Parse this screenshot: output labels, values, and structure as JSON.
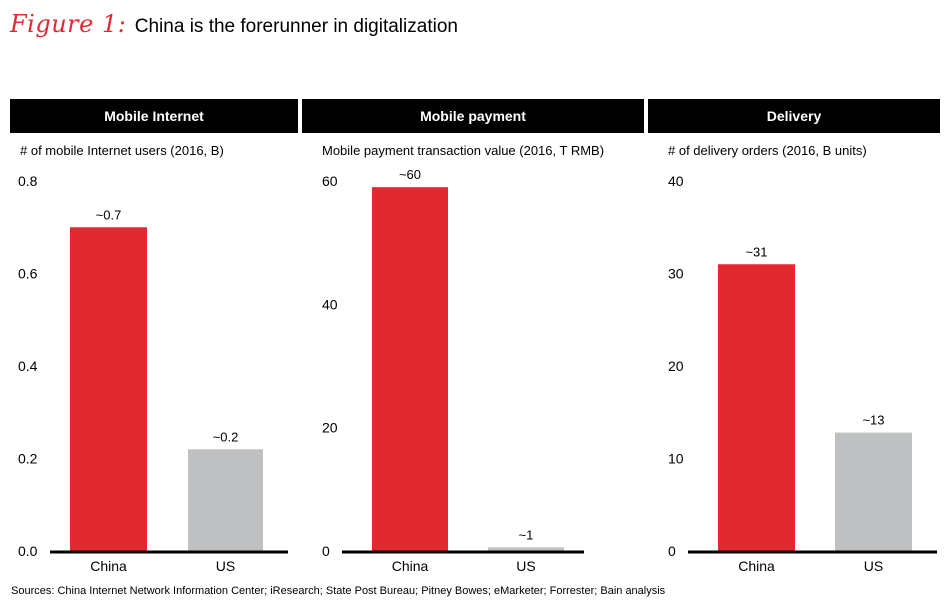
{
  "figure": {
    "label": "Figure 1:",
    "title": "China is the forerunner in digitalization",
    "sources": "Sources: China Internet Network Information Center; iResearch; State Post Bureau; Pitney Bowes; eMarketer; Forrester; Bain analysis"
  },
  "colors": {
    "china": "#e2292f",
    "us": "#bfc0c2",
    "header_bg": "#000000",
    "accent": "#e2292f"
  },
  "chart_data": [
    {
      "type": "bar",
      "title": "Mobile Internet",
      "ylabel": "# of mobile Internet users (2016, B)",
      "categories": [
        "China",
        "US"
      ],
      "values": [
        0.7,
        0.22
      ],
      "data_labels": [
        "~0.7",
        "~0.2"
      ],
      "ylim": [
        0,
        0.8
      ],
      "yticks": [
        0.0,
        0.2,
        0.4,
        0.6,
        0.8
      ],
      "ytick_labels": [
        "0.0",
        "0.2",
        "0.4",
        "0.6",
        "0.8"
      ],
      "grid": false
    },
    {
      "type": "bar",
      "title": "Mobile payment",
      "ylabel": "Mobile payment transaction value (2016, T RMB)",
      "categories": [
        "China",
        "US"
      ],
      "values": [
        59,
        0.6
      ],
      "data_labels": [
        "~60",
        "~1"
      ],
      "ylim": [
        0,
        60
      ],
      "yticks": [
        0,
        20,
        40,
        60
      ],
      "ytick_labels": [
        "0",
        "20",
        "40",
        "60"
      ],
      "grid": false
    },
    {
      "type": "bar",
      "title": "Delivery",
      "ylabel": "# of delivery orders (2016, B units)",
      "categories": [
        "China",
        "US"
      ],
      "values": [
        31,
        12.8
      ],
      "data_labels": [
        "~31",
        "~13"
      ],
      "ylim": [
        0,
        40
      ],
      "yticks": [
        0,
        10,
        20,
        30,
        40
      ],
      "ytick_labels": [
        "0",
        "10",
        "20",
        "30",
        "40"
      ],
      "grid": false
    }
  ]
}
